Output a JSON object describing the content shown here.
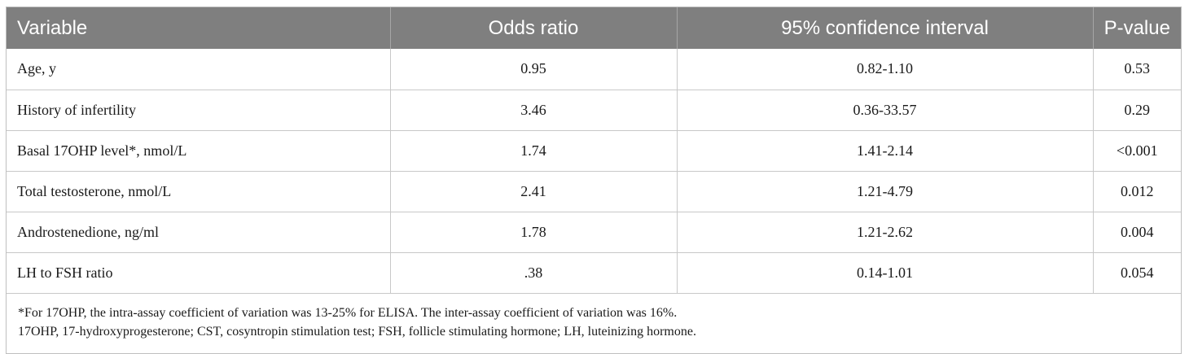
{
  "table": {
    "headers": [
      "Variable",
      "Odds ratio",
      "95% confidence interval",
      "P-value"
    ],
    "rows": [
      [
        "Age, y",
        "0.95",
        "0.82-1.10",
        "0.53"
      ],
      [
        "History of infertility",
        "3.46",
        "0.36-33.57",
        "0.29"
      ],
      [
        "Basal 17OHP level*, nmol/L",
        "1.74",
        "1.41-2.14",
        "<0.001"
      ],
      [
        "Total testosterone, nmol/L",
        "2.41",
        "1.21-4.79",
        "0.012"
      ],
      [
        "Androstenedione, ng/ml",
        "1.78",
        "1.21-2.62",
        "0.004"
      ],
      [
        "LH to FSH ratio",
        ".38",
        "0.14-1.01",
        "0.054"
      ]
    ],
    "footnotes": [
      "*For 17OHP, the intra-assay coefficient of variation was 13-25% for ELISA. The inter-assay coefficient of variation was 16%.",
      "17OHP, 17-hydroxyprogesterone; CST, cosyntropin stimulation test; FSH, follicle stimulating hormone; LH, luteinizing hormone."
    ]
  },
  "colors": {
    "header_bg": "#7f7f7f",
    "header_text": "#ffffff",
    "border": "#c8c8c8"
  }
}
